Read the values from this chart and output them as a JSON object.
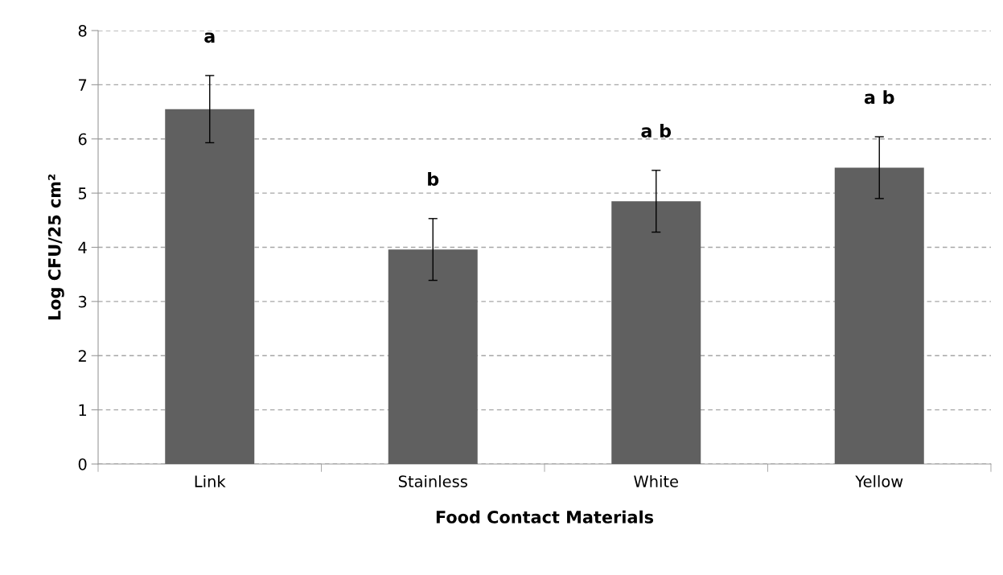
{
  "chart_data": {
    "type": "bar",
    "xlabel": "Food Contact Materials",
    "ylabel": "Log CFU/25 cm²",
    "categories": [
      "Link",
      "Stainless",
      "White",
      "Yellow"
    ],
    "values": [
      6.55,
      3.96,
      4.85,
      5.47
    ],
    "errors": [
      0.62,
      0.57,
      0.57,
      0.57
    ],
    "color": "#606060",
    "ylim": [
      0,
      8
    ],
    "yticks": [
      0,
      1,
      2,
      3,
      4,
      5,
      6,
      7,
      8
    ],
    "grid": "y",
    "legend": false,
    "annotations": [
      "a",
      "b",
      "a b",
      "a b"
    ]
  }
}
